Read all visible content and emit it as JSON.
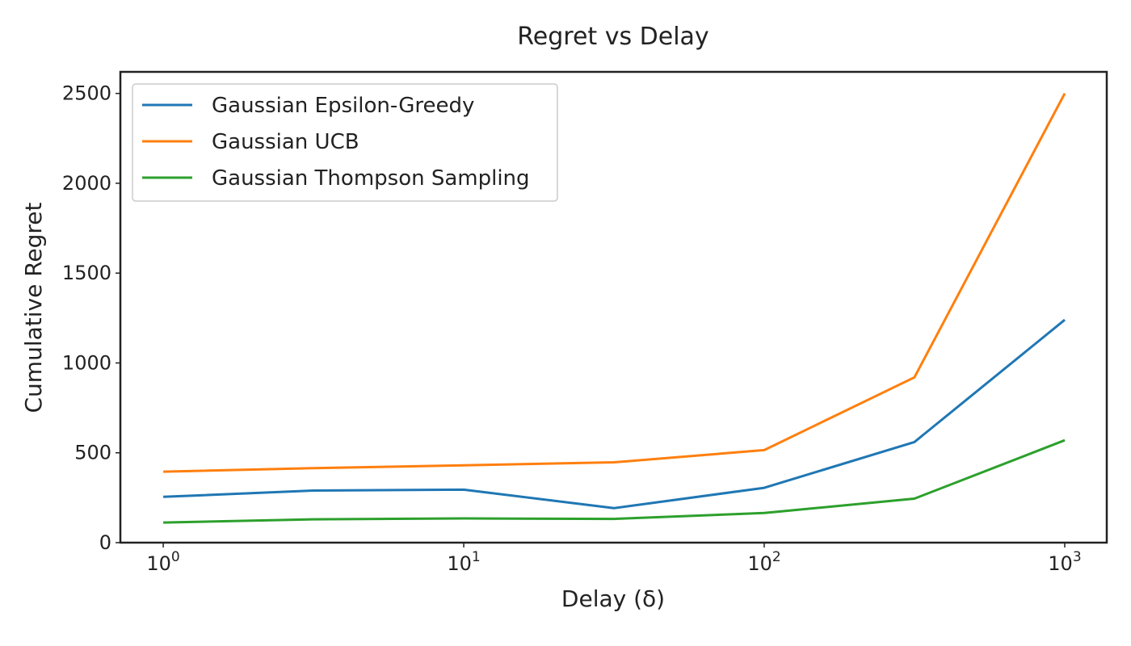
{
  "chart_data": {
    "type": "line",
    "title": "Regret vs Delay",
    "xlabel": "Delay (δ)",
    "ylabel": "Cumulative Regret",
    "x_scale": "log",
    "xlim": [
      0.72,
      1380
    ],
    "ylim": [
      0,
      2620
    ],
    "grid": false,
    "legend_position": "top-left",
    "x": [
      1,
      3.16,
      10,
      31.6,
      100,
      316,
      1000
    ],
    "x_ticks": [
      {
        "value": 1,
        "base": "10",
        "exp": "0"
      },
      {
        "value": 10,
        "base": "10",
        "exp": "1"
      },
      {
        "value": 100,
        "base": "10",
        "exp": "2"
      },
      {
        "value": 1000,
        "base": "10",
        "exp": "3"
      }
    ],
    "y_ticks": [
      {
        "value": 0,
        "label": "0"
      },
      {
        "value": 500,
        "label": "500"
      },
      {
        "value": 1000,
        "label": "1000"
      },
      {
        "value": 1500,
        "label": "1500"
      },
      {
        "value": 2000,
        "label": "2000"
      },
      {
        "value": 2500,
        "label": "2500"
      }
    ],
    "series": [
      {
        "name": "Gaussian Epsilon-Greedy",
        "color": "#1f77b4",
        "values": [
          255,
          290,
          295,
          192,
          305,
          560,
          1240
        ]
      },
      {
        "name": "Gaussian UCB",
        "color": "#ff7f0e",
        "values": [
          395,
          415,
          430,
          447,
          515,
          920,
          2500
        ]
      },
      {
        "name": "Gaussian Thompson Sampling",
        "color": "#2ca02c",
        "values": [
          112,
          130,
          135,
          132,
          165,
          245,
          570
        ]
      }
    ]
  }
}
